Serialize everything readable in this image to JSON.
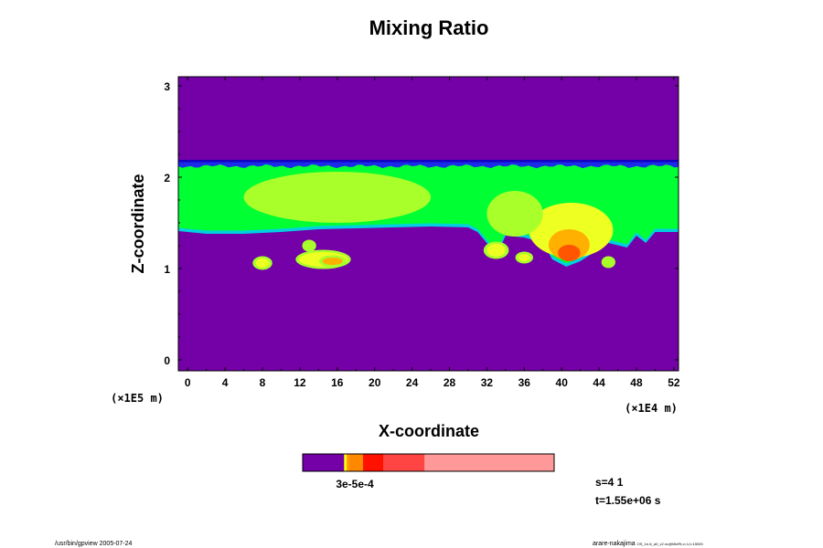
{
  "chart_data": {
    "type": "heatmap",
    "title": "Mixing Ratio",
    "xlabel": "X-coordinate",
    "ylabel": "Z-coordinate",
    "x_units": "(×1E4 m)",
    "y_units": "(×1E5 m)",
    "xlim": [
      -1,
      52.5
    ],
    "ylim": [
      -0.12,
      3.1
    ],
    "x_ticks": [
      "0",
      "4",
      "8",
      "12",
      "16",
      "20",
      "24",
      "28",
      "32",
      "36",
      "40",
      "44",
      "48",
      "52"
    ],
    "y_ticks": [
      "0",
      "1",
      "2",
      "3"
    ],
    "background_color": "#7400a8",
    "layer": {
      "top_z": 2.15,
      "bottom_edge": [
        [
          -1,
          1.43
        ],
        [
          2,
          1.4
        ],
        [
          6,
          1.4
        ],
        [
          10,
          1.42
        ],
        [
          14,
          1.45
        ],
        [
          18,
          1.46
        ],
        [
          22,
          1.47
        ],
        [
          26,
          1.48
        ],
        [
          30,
          1.47
        ],
        [
          31,
          1.42
        ],
        [
          32,
          1.3
        ],
        [
          33,
          1.15
        ],
        [
          34,
          1.38
        ],
        [
          36,
          1.36
        ],
        [
          38,
          1.3
        ],
        [
          39,
          1.12
        ],
        [
          40.5,
          1.04
        ],
        [
          42,
          1.1
        ],
        [
          43.5,
          1.2
        ],
        [
          45,
          1.3
        ],
        [
          47,
          1.25
        ],
        [
          48,
          1.38
        ],
        [
          49,
          1.3
        ],
        [
          50,
          1.42
        ],
        [
          52.5,
          1.42
        ]
      ],
      "features": [
        {
          "x": 16,
          "z": 1.78,
          "rx": 10,
          "rz": 0.28,
          "level": "yellow"
        },
        {
          "x": 41,
          "z": 1.42,
          "rx": 4.5,
          "rz": 0.3,
          "level": "yellow"
        },
        {
          "x": 40.8,
          "z": 1.26,
          "rx": 2.2,
          "rz": 0.17,
          "level": "orange"
        },
        {
          "x": 40.8,
          "z": 1.17,
          "rx": 1.2,
          "rz": 0.09,
          "level": "red-orange"
        },
        {
          "x": 35,
          "z": 1.6,
          "rx": 3,
          "rz": 0.25,
          "level": "light-green"
        }
      ],
      "patches": [
        {
          "x": 8,
          "z": 1.06,
          "rx": 0.7,
          "rz": 0.05,
          "level": "yellow"
        },
        {
          "x": 14.5,
          "z": 1.1,
          "rx": 2.6,
          "rz": 0.08,
          "level": "yellow"
        },
        {
          "x": 15.5,
          "z": 1.08,
          "rx": 1.1,
          "rz": 0.04,
          "level": "orange"
        },
        {
          "x": 13,
          "z": 1.25,
          "rx": 0.4,
          "rz": 0.04,
          "level": "light-green"
        },
        {
          "x": 33,
          "z": 1.2,
          "rx": 1,
          "rz": 0.07,
          "level": "yellow"
        },
        {
          "x": 36,
          "z": 1.12,
          "rx": 0.6,
          "rz": 0.04,
          "level": "yellow"
        },
        {
          "x": 45,
          "z": 1.07,
          "rx": 0.4,
          "rz": 0.04,
          "level": "light-green"
        }
      ]
    },
    "level_colors": {
      "cyan": "#00d0e0",
      "green": "#00ff33",
      "light-green": "#a8ff2a",
      "yellow": "#eeff22",
      "orange": "#ffb000",
      "red-orange": "#ff5500",
      "blue": "#1a2ce8",
      "dark-blue": "#1500c0"
    },
    "colorbar": {
      "label": "3e-5e-4",
      "segments": [
        {
          "fraction": 0.165,
          "color": "#7400a8"
        },
        {
          "fraction": 0.01,
          "color": "#ffff00"
        },
        {
          "fraction": 0.01,
          "color": "#ff9900"
        },
        {
          "fraction": 0.055,
          "color": "#ff8800"
        },
        {
          "fraction": 0.08,
          "color": "#ff1100"
        },
        {
          "fraction": 0.165,
          "color": "#ff4444"
        },
        {
          "fraction": 0.515,
          "color": "#ff9999"
        }
      ]
    }
  },
  "info": {
    "step": "s=4 1",
    "time": "t=1.55e+06 s"
  },
  "footer": {
    "left": "/usr/bin/gpview 2005-07-24",
    "right_main": "arare-nakajima",
    "right_small": "OS_1e-6_a0_v2.nc@MixRt,x=1,t=15000"
  }
}
